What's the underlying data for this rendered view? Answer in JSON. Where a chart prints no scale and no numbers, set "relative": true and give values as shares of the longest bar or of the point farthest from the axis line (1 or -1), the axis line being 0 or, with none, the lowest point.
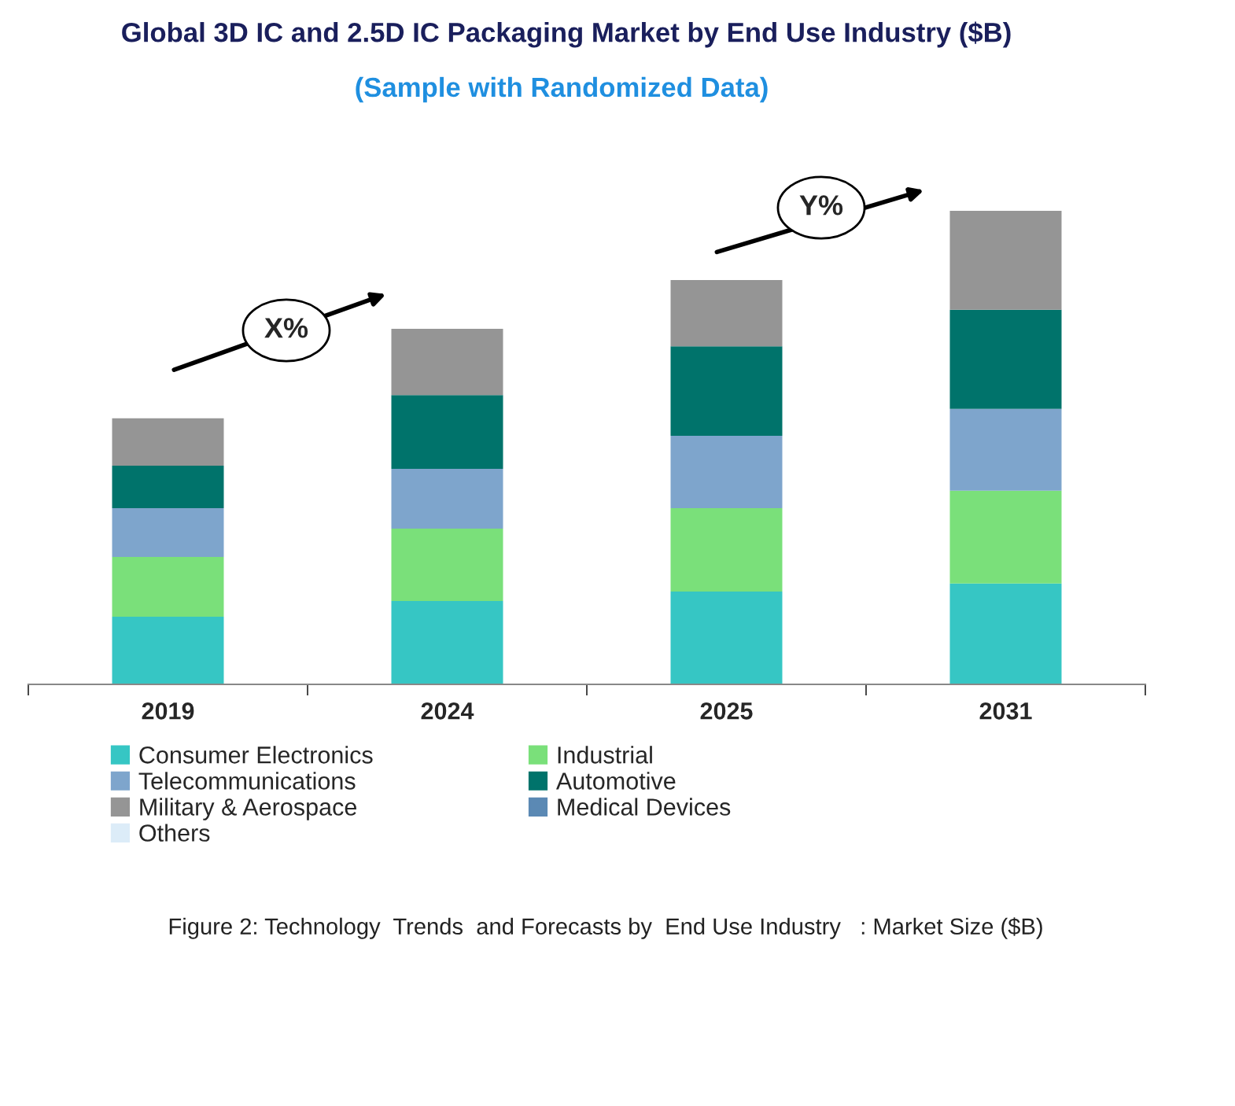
{
  "chart_data": {
    "type": "bar",
    "stacked": true,
    "relative": true,
    "title": "Global 3D IC and 2.5D IC Packaging Market by End Use Industry ($B)",
    "subtitle": "(Sample with Randomized Data)",
    "categories": [
      "2019",
      "2024",
      "2025",
      "2031"
    ],
    "series": [
      {
        "name": "Consumer Electronics",
        "color": "#36c6c4",
        "values": [
          0.143,
          0.176,
          0.196,
          0.213
        ]
      },
      {
        "name": "Industrial",
        "color": "#7ae07a",
        "values": [
          0.126,
          0.153,
          0.176,
          0.196
        ]
      },
      {
        "name": "Telecommunications",
        "color": "#7ea5cc",
        "values": [
          0.103,
          0.126,
          0.153,
          0.173
        ]
      },
      {
        "name": "Automotive",
        "color": "#00736b",
        "values": [
          0.09,
          0.156,
          0.189,
          0.209
        ]
      },
      {
        "name": "Military & Aerospace",
        "color": "#959595",
        "values": [
          0.1,
          0.14,
          0.14,
          0.209
        ]
      },
      {
        "name": "Medical Devices",
        "color": "#5b89b4",
        "values": [
          null,
          null,
          null,
          null
        ]
      },
      {
        "name": "Others",
        "color": "#dcecf8",
        "values": [
          null,
          null,
          null,
          null
        ]
      }
    ],
    "legend": "bottom",
    "annotations": [
      "X%",
      "Y%",
      "Figure 2: Technology  Trends  and Forecasts by  End Use Industry   : Market Size ($B)"
    ]
  }
}
